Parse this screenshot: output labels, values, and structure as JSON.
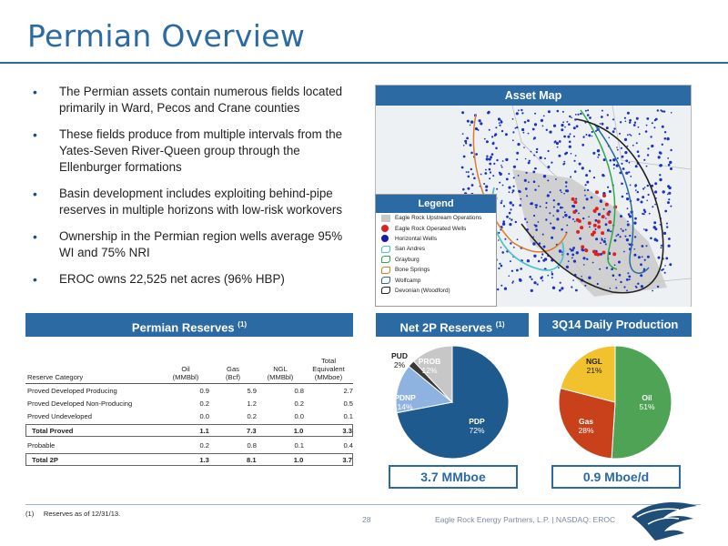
{
  "slide": {
    "title": "Permian Overview",
    "bullets": [
      "The Permian assets contain numerous fields located primarily in Ward, Pecos and Crane counties",
      "These fields produce from multiple intervals from the Yates-Seven River-Queen group through the Ellenburger formations",
      "Basin development includes exploiting behind-pipe reserves in multiple horizons with low-risk workovers",
      "Ownership in the Permian region wells average 95% WI and 75% NRI",
      "EROC owns 22,525 net acres (96% HBP)"
    ]
  },
  "map": {
    "header": "Asset Map",
    "legend_title": "Legend",
    "legend": [
      {
        "label": "Eagle Rock Upstream Operations",
        "color": "#c8c8c8",
        "shape": "square"
      },
      {
        "label": "Eagle Rock Operated Wells",
        "color": "#e02020",
        "shape": "dot"
      },
      {
        "label": "Horizontal Wells",
        "color": "#1a1aa8",
        "shape": "dot"
      },
      {
        "label": "San Andres",
        "color": "#4fc3c9",
        "shape": "outline"
      },
      {
        "label": "Grayburg",
        "color": "#2fa84f",
        "shape": "outline"
      },
      {
        "label": "Bone Springs",
        "color": "#e07a2a",
        "shape": "outline"
      },
      {
        "label": "Wolfcamp",
        "color": "#2b6aa3",
        "shape": "outline"
      },
      {
        "label": "Devonian (Woodford)",
        "color": "#222222",
        "shape": "outline"
      }
    ]
  },
  "reserves": {
    "header": "Permian Reserves",
    "header_note": "(1)",
    "columns": [
      "Reserve Category",
      "Oil\n(MMBbl)",
      "Gas\n(Bcf)",
      "NGL\n(MMBbl)",
      "Total\nEquivalent\n(MMboe)"
    ],
    "col_labels": {
      "category": "Reserve Category",
      "oil": [
        "Oil",
        "(MMBbl)"
      ],
      "gas": [
        "Gas",
        "(Bcf)"
      ],
      "ngl": [
        "NGL",
        "(MMBbl)"
      ],
      "total": [
        "Total",
        "Equivalent",
        "(MMboe)"
      ]
    },
    "rows": [
      {
        "name": "Proved Developed Producing",
        "oil": "0.9",
        "gas": "5.9",
        "ngl": "0.8",
        "total": "2.7",
        "boxed": false
      },
      {
        "name": "Proved Developed Non-Producing",
        "oil": "0.2",
        "gas": "1.2",
        "ngl": "0.2",
        "total": "0.5",
        "boxed": false
      },
      {
        "name": "Proved Undeveloped",
        "oil": "0.0",
        "gas": "0.2",
        "ngl": "0.0",
        "total": "0.1",
        "boxed": false
      },
      {
        "name": "Total Proved",
        "oil": "1.1",
        "gas": "7.3",
        "ngl": "1.0",
        "total": "3.3",
        "boxed": true
      },
      {
        "name": "Probable",
        "oil": "0.2",
        "gas": "0.8",
        "ngl": "0.1",
        "total": "0.4",
        "boxed": false
      },
      {
        "name": "Total 2P",
        "oil": "1.3",
        "gas": "8.1",
        "ngl": "1.0",
        "total": "3.7",
        "boxed": true
      }
    ]
  },
  "net2p": {
    "header": "Net 2P Reserves",
    "header_note": "(1)",
    "caption": "3.7 MMboe"
  },
  "production": {
    "header": "3Q14 Daily Production",
    "caption": "0.9 Mboe/d"
  },
  "chart_data": [
    {
      "type": "pie",
      "title": "Net 2P Reserves",
      "slices": [
        {
          "label": "PDP",
          "value": 72,
          "display": "72%",
          "color": "#1f5a8e"
        },
        {
          "label": "PDNP",
          "value": 14,
          "display": "14%",
          "color": "#8fb3e0"
        },
        {
          "label": "PUD",
          "value": 2,
          "display": "2%",
          "color": "#3a3a3a"
        },
        {
          "label": "PROB",
          "value": 12,
          "display": "12%",
          "color": "#c7c7c7"
        }
      ]
    },
    {
      "type": "pie",
      "title": "3Q14 Daily Production",
      "slices": [
        {
          "label": "Oil",
          "value": 51,
          "display": "51%",
          "color": "#4ea454"
        },
        {
          "label": "Gas",
          "value": 28,
          "display": "28%",
          "color": "#c9411b"
        },
        {
          "label": "NGL",
          "value": 21,
          "display": "21%",
          "color": "#f2c12e"
        }
      ]
    }
  ],
  "footer": {
    "footnote": "(1)     Reserves as of 12/31/13.",
    "page": "28",
    "company": "Eagle Rock Energy Partners, L.P.  |  NASDAQ: EROC"
  }
}
